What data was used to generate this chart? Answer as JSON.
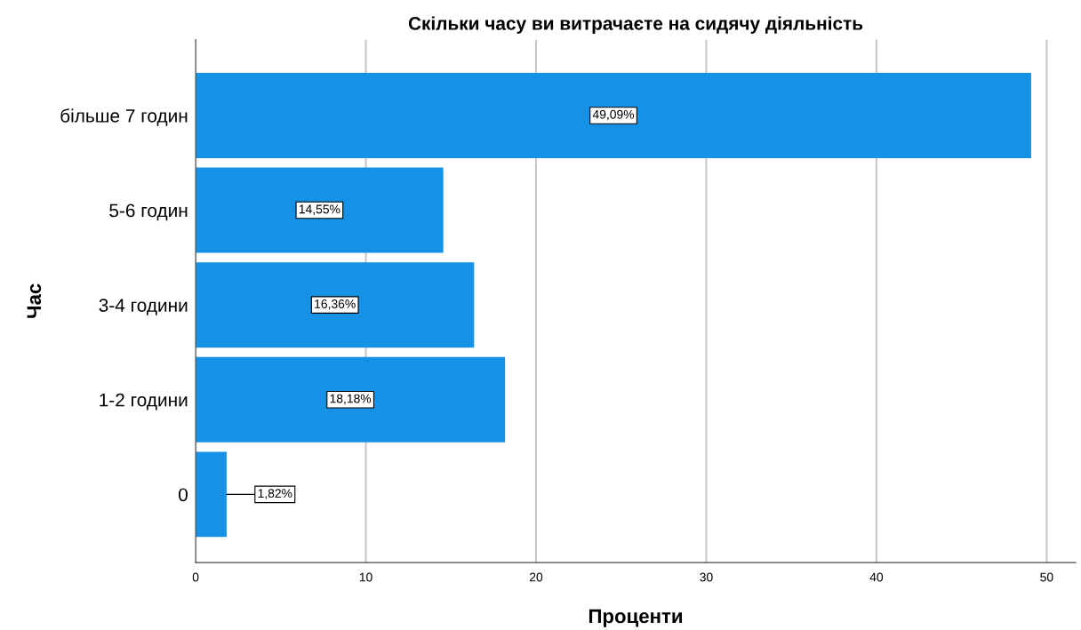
{
  "chart_data": {
    "type": "bar",
    "orientation": "horizontal",
    "title": "Скільки часу ви витрачаєте на сидячу діяльність",
    "xlabel": "Проценти",
    "ylabel": "Час",
    "categories": [
      "більше 7 годин",
      "5-6 годин",
      "3-4 години",
      "1-2 години",
      "0"
    ],
    "values": [
      49.09,
      14.55,
      16.36,
      18.18,
      1.82
    ],
    "value_labels": [
      "49,09%",
      "14,55%",
      "16,36%",
      "18,18%",
      "1,82%"
    ],
    "color": "#1591e6",
    "xlim": [
      0,
      51.7
    ],
    "xticks": [
      0,
      10,
      20,
      30,
      40,
      50
    ],
    "grid": "x"
  }
}
